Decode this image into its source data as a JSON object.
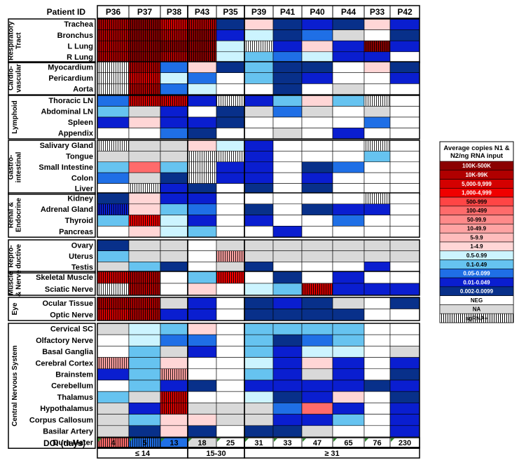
{
  "chart_data": {
    "type": "heatmap",
    "header_label": "Patient ID",
    "patients": [
      "P36",
      "P37",
      "P38",
      "P43",
      "P35",
      "P39",
      "P41",
      "P40",
      "P44",
      "P33",
      "P42"
    ],
    "doi_label": "DOI (days)",
    "doi": [
      "4",
      "5",
      "13",
      "18",
      "25",
      "31",
      "33",
      "47",
      "65",
      "76",
      "230"
    ],
    "doi_groups": [
      {
        "label": "≤ 14",
        "patients": [
          "P36",
          "P37",
          "P38"
        ]
      },
      {
        "label": "15-30",
        "patients": [
          "P43",
          "P35"
        ]
      },
      {
        "label": "≥ 31",
        "patients": [
          "P39",
          "P41",
          "P40",
          "P44",
          "P33",
          "P42"
        ]
      }
    ],
    "legend": {
      "title": "Average copies N1 & N2/ng RNA input",
      "items": [
        {
          "code": "a",
          "label": "100K-500K",
          "color": "#8b0000"
        },
        {
          "code": "b",
          "label": "10K-99K",
          "color": "#b00000"
        },
        {
          "code": "c",
          "label": "5,000-9,999",
          "color": "#d40000"
        },
        {
          "code": "d",
          "label": "1,000-4,999",
          "color": "#f00000"
        },
        {
          "code": "e",
          "label": "500-999",
          "color": "#ff4545"
        },
        {
          "code": "f",
          "label": "100-499",
          "color": "#ff6b6b"
        },
        {
          "code": "g",
          "label": "50-99.9",
          "color": "#ff8a8a"
        },
        {
          "code": "h",
          "label": "10-49.9",
          "color": "#ffa3a3"
        },
        {
          "code": "i",
          "label": "5-9.9",
          "color": "#ffbcbc"
        },
        {
          "code": "j",
          "label": "1-4.9",
          "color": "#ffd6d6"
        },
        {
          "code": "k",
          "label": "0.5-0.99",
          "color": "#ccf4ff"
        },
        {
          "code": "l",
          "label": "0.1-0.49",
          "color": "#66c3f0"
        },
        {
          "code": "m",
          "label": "0.05-0.099",
          "color": "#1f6fe6"
        },
        {
          "code": "n",
          "label": "0.01-0.049",
          "color": "#0a1ed0"
        },
        {
          "code": "o",
          "label": "0.002-0.0099",
          "color": "#08308a"
        },
        {
          "code": "p",
          "label": "NEG",
          "color": "#ffffff"
        },
        {
          "code": "q",
          "label": "NA",
          "color": "#d9d9d9"
        },
        {
          "code": "r",
          "label": "sgRNA+",
          "color": "#ffffff",
          "pattern": "stripes"
        }
      ]
    },
    "groups": [
      {
        "name": "Respiratory Tract",
        "rows": [
          {
            "tissue": "Trachea",
            "cells": [
              "b*",
              "a*",
              "c*",
              "b*",
              "o",
              "j",
              "o",
              "n",
              "o",
              "j",
              "n"
            ]
          },
          {
            "tissue": "Bronchus",
            "cells": [
              "b*",
              "a*",
              "b*",
              "a*",
              "n",
              "k",
              "o",
              "m",
              "q",
              "p",
              "o"
            ]
          },
          {
            "tissue": "L Lung",
            "cells": [
              "b*",
              "a*",
              "a*",
              "a*",
              "k",
              "p*",
              "n",
              "j",
              "n",
              "a*",
              "n"
            ]
          },
          {
            "tissue": "R Lung",
            "cells": [
              "b*",
              "a*",
              "b*",
              "a*",
              "k",
              "l",
              "m",
              "k",
              "n",
              "n",
              "p"
            ]
          }
        ]
      },
      {
        "name": "Cardio-vascular",
        "rows": [
          {
            "tissue": "Myocardium",
            "cells": [
              "p*",
              "b*",
              "m",
              "j",
              "o",
              "l",
              "o",
              "o",
              "p",
              "j",
              "o"
            ]
          },
          {
            "tissue": "Pericardium",
            "cells": [
              "p*",
              "c*",
              "k",
              "m",
              "p",
              "l",
              "o",
              "n",
              "p",
              "p",
              "n"
            ]
          },
          {
            "tissue": "Aorta",
            "cells": [
              "p*",
              "b*",
              "m",
              "k",
              "p",
              "p",
              "o",
              "p",
              "q",
              "p",
              "p"
            ]
          }
        ]
      },
      {
        "name": "Lymphoid",
        "rows": [
          {
            "tissue": "Thoracic LN",
            "cells": [
              "m",
              "c*",
              "c*",
              "n",
              "p*",
              "n",
              "l",
              "j",
              "l",
              "p*",
              "p"
            ]
          },
          {
            "tissue": "Abdominal LN",
            "cells": [
              "l",
              "q",
              "n",
              "p",
              "o",
              "q",
              "m",
              "q",
              "p",
              "q",
              "p"
            ]
          },
          {
            "tissue": "Spleen",
            "cells": [
              "n",
              "j",
              "n",
              "n",
              "o",
              "p",
              "p",
              "p",
              "p",
              "m",
              "p"
            ]
          },
          {
            "tissue": "Appendix",
            "cells": [
              "p",
              "p",
              "m",
              "o",
              "p",
              "p",
              "q",
              "p",
              "n",
              "p",
              "p"
            ]
          }
        ]
      },
      {
        "name": "Gastro-intestinal",
        "rows": [
          {
            "tissue": "Salivary Gland",
            "cells": [
              "p*",
              "q",
              "q",
              "j",
              "k",
              "n",
              "p",
              "p",
              "p",
              "p*",
              "p"
            ]
          },
          {
            "tissue": "Tongue",
            "cells": [
              "q",
              "q",
              "q",
              "p*",
              "p*",
              "n",
              "p",
              "p",
              "p",
              "l",
              "p"
            ]
          },
          {
            "tissue": "Small Intestine",
            "cells": [
              "l",
              "f",
              "l",
              "p*",
              "n",
              "n",
              "p",
              "o",
              "m",
              "p",
              "p"
            ]
          },
          {
            "tissue": "Colon",
            "cells": [
              "m",
              "q",
              "o",
              "p*",
              "n",
              "n",
              "p",
              "n",
              "p",
              "p",
              "p"
            ]
          },
          {
            "tissue": "Liver",
            "cells": [
              "p",
              "p*",
              "n",
              "o",
              "p",
              "o",
              "p",
              "o",
              "p",
              "p",
              "p"
            ]
          }
        ]
      },
      {
        "name": "Renal & Endocrine",
        "rows": [
          {
            "tissue": "Kidney",
            "cells": [
              "o",
              "j",
              "n",
              "n",
              "p",
              "p",
              "p",
              "p",
              "p",
              "p*",
              "p"
            ]
          },
          {
            "tissue": "Adrenal Gland",
            "cells": [
              "n*",
              "j",
              "l",
              "m",
              "p",
              "o",
              "p",
              "o",
              "n",
              "n",
              "p"
            ]
          },
          {
            "tissue": "Thyroid",
            "cells": [
              "l",
              "d*",
              "k",
              "n",
              "p",
              "n",
              "p",
              "p",
              "m",
              "p",
              "p"
            ]
          },
          {
            "tissue": "Pancreas",
            "cells": [
              "p",
              "j",
              "k",
              "l",
              "p",
              "p",
              "n",
              "p",
              "p",
              "p",
              "p"
            ]
          }
        ]
      },
      {
        "name": "Repro-ductive",
        "rows": [
          {
            "tissue": "Ovary",
            "cells": [
              "o",
              "q",
              "q",
              "p",
              "q",
              "q",
              "q",
              "q",
              "q",
              "q",
              "q"
            ]
          },
          {
            "tissue": "Uterus",
            "cells": [
              "l",
              "q",
              "q",
              "p",
              "h*",
              "q",
              "q",
              "q",
              "q",
              "q",
              "q"
            ]
          },
          {
            "tissue": "Testis",
            "cells": [
              "q",
              "l",
              "o",
              "p",
              "q",
              "o",
              "p",
              "p",
              "p",
              "n",
              "p"
            ]
          }
        ]
      },
      {
        "name": "Muscle & Nerve",
        "rows": [
          {
            "tissue": "Skeletal Muscle",
            "cells": [
              "c*",
              "b*",
              "p",
              "l",
              "d*",
              "p",
              "o",
              "p",
              "n",
              "p",
              "p"
            ]
          },
          {
            "tissue": "Sciatic Nerve",
            "cells": [
              "p*",
              "b*",
              "p",
              "j",
              "p",
              "k",
              "l",
              "c*",
              "n",
              "n",
              "n"
            ]
          }
        ]
      },
      {
        "name": "Eye",
        "rows": [
          {
            "tissue": "Ocular Tissue",
            "cells": [
              "b*",
              "b*",
              "q",
              "n",
              "p",
              "o",
              "n",
              "o",
              "q",
              "p",
              "o"
            ]
          },
          {
            "tissue": "Optic Nerve",
            "cells": [
              "c*",
              "b*",
              "n",
              "n",
              "p",
              "o",
              "o",
              "o",
              "o",
              "p",
              "p"
            ]
          }
        ]
      },
      {
        "name": "Central Nervous System",
        "rows": [
          {
            "tissue": "Cervical SC",
            "cells": [
              "q",
              "k",
              "l",
              "j",
              "p",
              "l",
              "l",
              "l",
              "l",
              "p",
              "p"
            ]
          },
          {
            "tissue": "Olfactory Nerve",
            "cells": [
              "p",
              "k",
              "m",
              "m",
              "p",
              "l",
              "o",
              "m",
              "l",
              "p",
              "p"
            ]
          },
          {
            "tissue": "Basal Ganglia",
            "cells": [
              "p",
              "l",
              "q",
              "n",
              "p",
              "l",
              "n",
              "k",
              "k",
              "p",
              "q"
            ]
          },
          {
            "tissue": "Cerebral Cortex",
            "cells": [
              "h*",
              "l",
              "j",
              "p",
              "p",
              "k",
              "n",
              "j",
              "n",
              "p",
              "n"
            ]
          },
          {
            "tissue": "Brainstem",
            "cells": [
              "n",
              "l",
              "h*",
              "p",
              "p",
              "l",
              "n",
              "q",
              "n",
              "p",
              "o"
            ]
          },
          {
            "tissue": "Cerebellum",
            "cells": [
              "p",
              "l",
              "n",
              "o",
              "p",
              "n",
              "n",
              "n",
              "n",
              "o",
              "n"
            ]
          },
          {
            "tissue": "Thalamus",
            "cells": [
              "l",
              "q",
              "c*",
              "p",
              "p",
              "k",
              "o",
              "n",
              "j",
              "p",
              "o"
            ]
          },
          {
            "tissue": "Hypothalamus",
            "cells": [
              "q",
              "n",
              "c*",
              "q",
              "q",
              "q",
              "m",
              "f",
              "n",
              "p",
              "n"
            ]
          },
          {
            "tissue": "Corpus Callosum",
            "cells": [
              "q",
              "l",
              "j",
              "j",
              "q",
              "q",
              "n",
              "n",
              "l",
              "p",
              "n"
            ]
          },
          {
            "tissue": "Basilar Artery",
            "cells": [
              "q",
              "o",
              "j",
              "o",
              "p",
              "o",
              "o",
              "q",
              "p",
              "p",
              "n"
            ]
          },
          {
            "tissue": "Dura Mater",
            "cells": [
              "f*",
              "m*",
              "m",
              "q",
              "p",
              "p",
              "p",
              "p",
              "p",
              "p",
              "p"
            ]
          }
        ]
      }
    ]
  }
}
